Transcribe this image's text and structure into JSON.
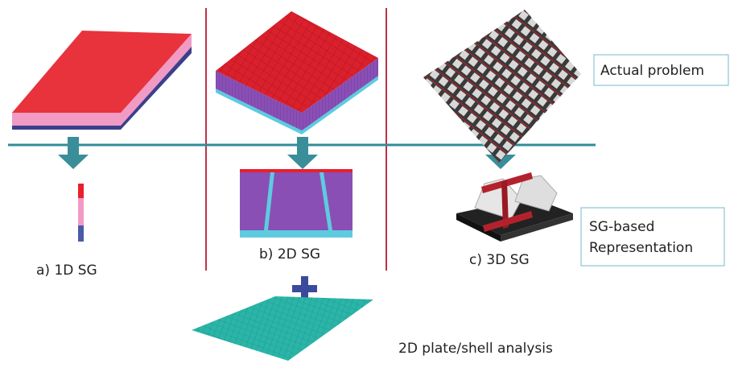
{
  "annotations": {
    "actual_problem": "Actual problem",
    "sg_representation": [
      "SG-based",
      "Representation"
    ]
  },
  "panels": [
    {
      "label": "a) 1D SG"
    },
    {
      "label": "b) 2D SG"
    },
    {
      "label": "c) 3D SG"
    }
  ],
  "plate_analysis": "2D plate/shell analysis"
}
